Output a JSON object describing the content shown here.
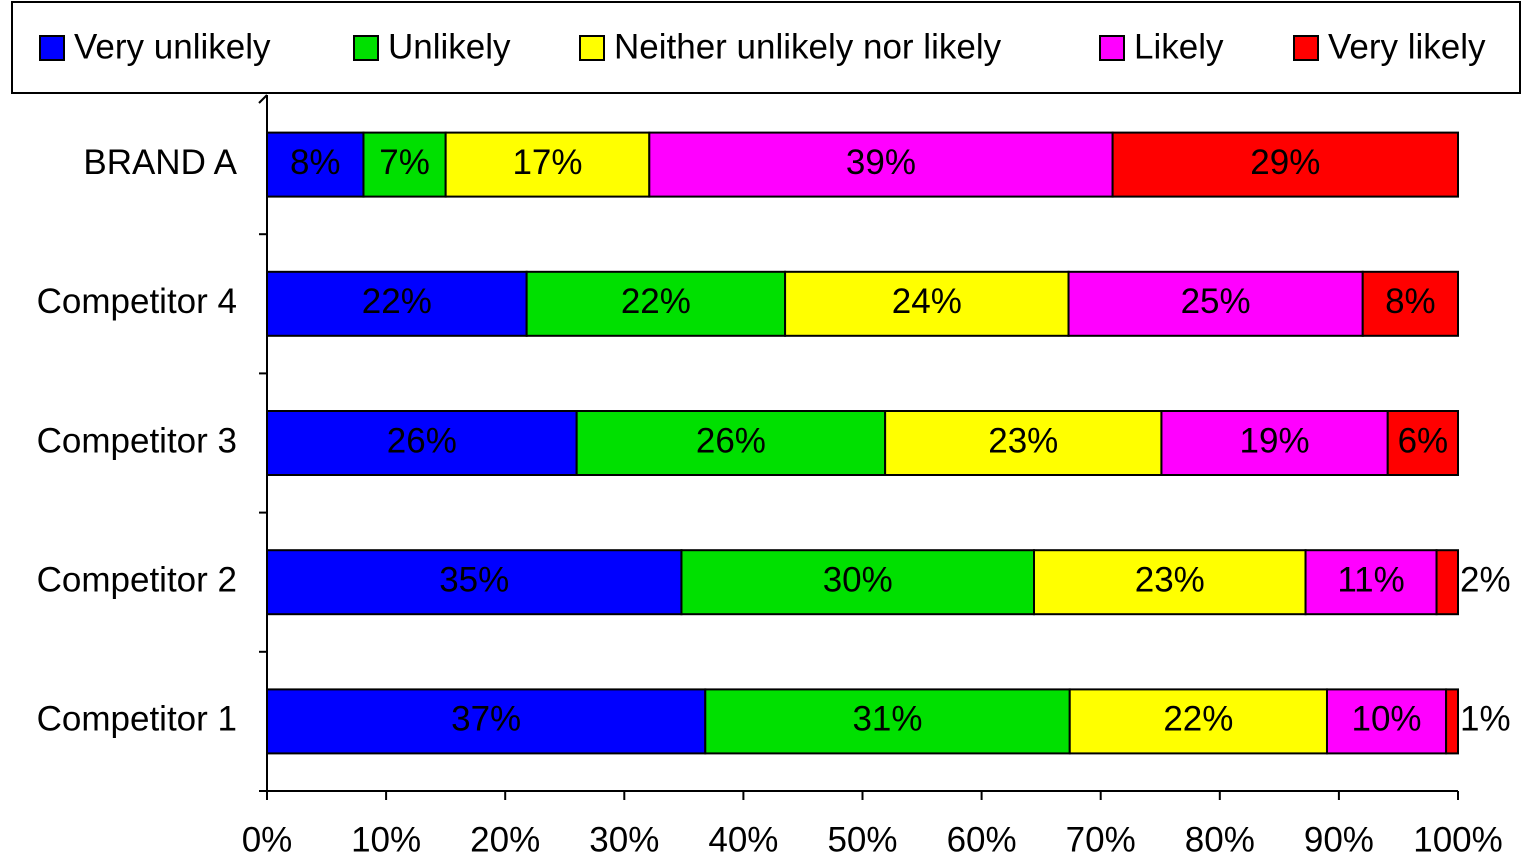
{
  "chart_data": {
    "type": "stacked-barh",
    "categories": [
      "BRAND A",
      "Competitor 4",
      "Competitor 3",
      "Competitor 2",
      "Competitor 1"
    ],
    "series": [
      {
        "name": "Very unlikely",
        "color": "#0000ff",
        "values": [
          8.1,
          21.8,
          26.0,
          34.8,
          36.8
        ],
        "value_labels": [
          "8%",
          "22%",
          "26%",
          "35%",
          "37%"
        ]
      },
      {
        "name": "Unlikely",
        "color": "#00e000",
        "values": [
          6.9,
          21.7,
          25.9,
          29.6,
          30.6
        ],
        "value_labels": [
          "7%",
          "22%",
          "26%",
          "30%",
          "31%"
        ]
      },
      {
        "name": "Neither unlikely nor likely",
        "color": "#ffff00",
        "values": [
          17.1,
          23.8,
          23.2,
          22.8,
          21.6
        ],
        "value_labels": [
          "17%",
          "24%",
          "23%",
          "23%",
          "22%"
        ]
      },
      {
        "name": "Likely",
        "color": "#ff00ff",
        "values": [
          38.9,
          24.7,
          19.0,
          11.0,
          10.0
        ],
        "value_labels": [
          "39%",
          "25%",
          "19%",
          "11%",
          "10%"
        ]
      },
      {
        "name": "Very likely",
        "color": "#ff0000",
        "values": [
          29.0,
          8.0,
          5.9,
          1.8,
          1.0
        ],
        "value_labels": [
          "29%",
          "8%",
          "6%",
          "2%",
          "1%"
        ]
      }
    ],
    "xlim": [
      0,
      100
    ],
    "xticks": [
      {
        "value": 0,
        "label": "0%"
      },
      {
        "value": 10,
        "label": "10%"
      },
      {
        "value": 20,
        "label": "20%"
      },
      {
        "value": 30,
        "label": "30%"
      },
      {
        "value": 40,
        "label": "40%"
      },
      {
        "value": 50,
        "label": "50%"
      },
      {
        "value": 60,
        "label": "60%"
      },
      {
        "value": 70,
        "label": "70%"
      },
      {
        "value": 80,
        "label": "80%"
      },
      {
        "value": 90,
        "label": "90%"
      },
      {
        "value": 100,
        "label": "100%"
      }
    ],
    "legend": "top"
  }
}
